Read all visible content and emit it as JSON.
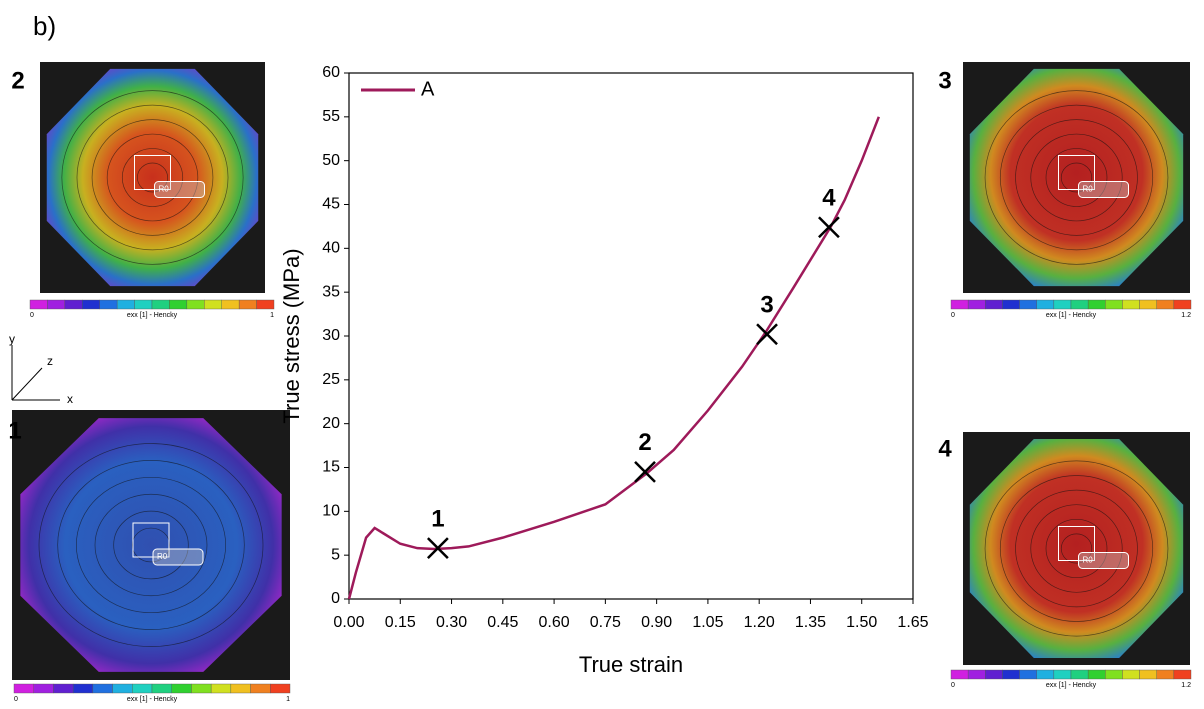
{
  "figure_label": "b)",
  "axes_icon": {
    "x": "x",
    "y": "y",
    "z": "z"
  },
  "insets": [
    {
      "label": "2",
      "colorbar_min": "0",
      "colorbar_max": "1",
      "colorbar_title": "exx [1] - Hencky",
      "roi": "R0"
    },
    {
      "label": "1",
      "colorbar_min": "0",
      "colorbar_max": "1",
      "colorbar_title": "exx [1] - Hencky",
      "roi": "R0"
    },
    {
      "label": "3",
      "colorbar_min": "0",
      "colorbar_max": "1.2",
      "colorbar_title": "exx [1] - Hencky",
      "roi": "R0"
    },
    {
      "label": "4",
      "colorbar_min": "0",
      "colorbar_max": "1.2",
      "colorbar_title": "exx [1] - Hencky",
      "roi": "R0"
    }
  ],
  "chart_data": {
    "type": "line",
    "x_label": "True strain",
    "y_label": "True stress (MPa)",
    "x": [
      0,
      0.02,
      0.05,
      0.075,
      0.1,
      0.15,
      0.2,
      0.25,
      0.3,
      0.35,
      0.45,
      0.6,
      0.75,
      0.87,
      0.95,
      1.05,
      1.15,
      1.22,
      1.3,
      1.41,
      1.45,
      1.5,
      1.55
    ],
    "series": [
      {
        "name": "A",
        "color": "#9e1a5a",
        "values": [
          0,
          3,
          7,
          8.1,
          7.5,
          6.3,
          5.8,
          5.7,
          5.8,
          6,
          7,
          8.8,
          10.8,
          14.3,
          17,
          21.5,
          26.5,
          30.5,
          35.5,
          42.5,
          45.5,
          50,
          55
        ]
      }
    ],
    "markers": [
      {
        "label": "1",
        "x": 0.26,
        "y": 5.8
      },
      {
        "label": "2",
        "x": 0.866,
        "y": 14.5
      },
      {
        "label": "3",
        "x": 1.223,
        "y": 30.2
      },
      {
        "label": "4",
        "x": 1.404,
        "y": 42.4
      }
    ],
    "xlim": [
      0,
      1.65
    ],
    "xticks": [
      {
        "value": 0,
        "label": "0.00"
      },
      {
        "value": 0.15,
        "label": "0.15"
      },
      {
        "value": 0.3,
        "label": "0.30"
      },
      {
        "value": 0.45,
        "label": "0.45"
      },
      {
        "value": 0.6,
        "label": "0.60"
      },
      {
        "value": 0.75,
        "label": "0.75"
      },
      {
        "value": 0.9,
        "label": "0.90"
      },
      {
        "value": 1.05,
        "label": "1.05"
      },
      {
        "value": 1.2,
        "label": "1.20"
      },
      {
        "value": 1.35,
        "label": "1.35"
      },
      {
        "value": 1.5,
        "label": "1.50"
      },
      {
        "value": 1.65,
        "label": "1.65"
      }
    ],
    "ylim": [
      0,
      60
    ],
    "yticks": [
      0,
      5,
      10,
      15,
      20,
      25,
      30,
      35,
      40,
      45,
      50,
      55,
      60
    ],
    "legend": "top-left",
    "grid": false
  }
}
